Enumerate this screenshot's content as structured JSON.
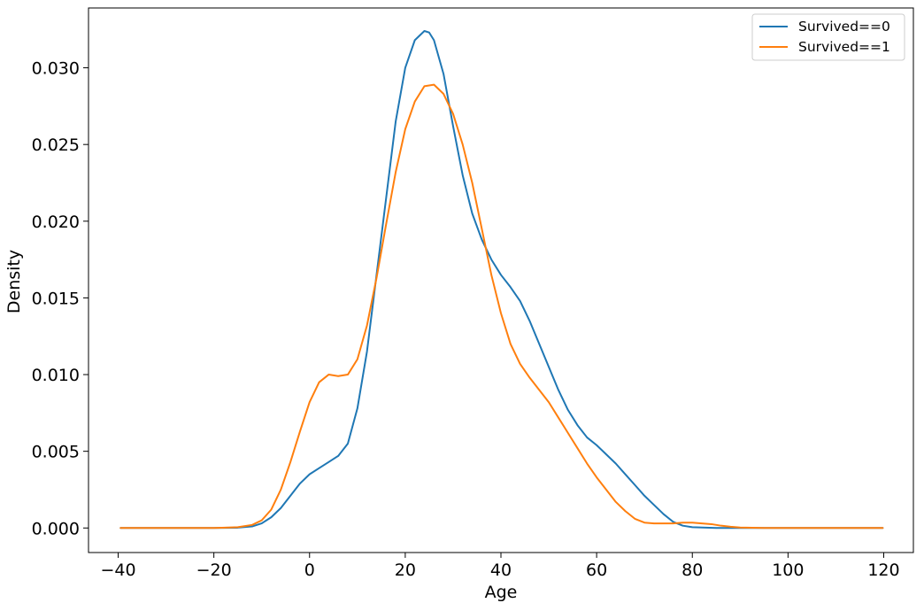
{
  "chart_data": {
    "type": "line",
    "title": "",
    "xlabel": "Age",
    "ylabel": "Density",
    "xlim": [
      -46.2,
      126.2
    ],
    "ylim": [
      -0.0016,
      0.0339
    ],
    "xticks": [
      -40,
      -20,
      0,
      20,
      40,
      60,
      80,
      100,
      120
    ],
    "xtick_labels": [
      "−40",
      "−20",
      "0",
      "20",
      "40",
      "60",
      "80",
      "100",
      "120"
    ],
    "yticks": [
      0.0,
      0.005,
      0.01,
      0.015,
      0.02,
      0.025,
      0.03
    ],
    "ytick_labels": [
      "0.000",
      "0.005",
      "0.010",
      "0.015",
      "0.020",
      "0.025",
      "0.030"
    ],
    "grid": false,
    "legend_position": "top-right",
    "series": [
      {
        "name": "Survived==0",
        "color": "#1f77b4",
        "x": [
          -39.5,
          -30,
          -20,
          -15,
          -12,
          -10,
          -8,
          -6,
          -4,
          -2,
          0,
          2,
          4,
          6,
          8,
          10,
          12,
          14,
          16,
          18,
          20,
          22,
          24,
          25,
          26,
          28,
          30,
          32,
          34,
          36,
          38,
          40,
          42,
          44,
          46,
          48,
          50,
          52,
          54,
          56,
          58,
          60,
          62,
          64,
          66,
          68,
          70,
          72,
          74,
          76,
          78,
          80,
          85,
          90,
          100,
          110,
          119.8
        ],
        "y": [
          0,
          0,
          0,
          2e-05,
          0.0001,
          0.0003,
          0.0007,
          0.0013,
          0.0021,
          0.0029,
          0.0035,
          0.0039,
          0.0043,
          0.0047,
          0.0055,
          0.0078,
          0.0115,
          0.0165,
          0.0215,
          0.0265,
          0.03,
          0.0318,
          0.0324,
          0.0323,
          0.0318,
          0.0296,
          0.0262,
          0.023,
          0.0205,
          0.0188,
          0.0175,
          0.0165,
          0.0157,
          0.0148,
          0.0135,
          0.012,
          0.0105,
          0.009,
          0.0077,
          0.0067,
          0.0059,
          0.0054,
          0.0048,
          0.0042,
          0.0035,
          0.0028,
          0.0021,
          0.0015,
          0.0009,
          0.0004,
          0.00015,
          5e-05,
          0,
          0,
          0,
          0,
          0
        ]
      },
      {
        "name": "Survived==1",
        "color": "#ff7f0e",
        "x": [
          -39.5,
          -30,
          -20,
          -15,
          -12,
          -10,
          -8,
          -6,
          -4,
          -2,
          0,
          2,
          4,
          6,
          8,
          10,
          12,
          14,
          16,
          18,
          20,
          22,
          24,
          26,
          28,
          30,
          32,
          34,
          36,
          38,
          40,
          42,
          44,
          46,
          48,
          50,
          52,
          54,
          56,
          58,
          60,
          62,
          64,
          66,
          68,
          70,
          72,
          74,
          76,
          78,
          80,
          82,
          84,
          86,
          88,
          90,
          95,
          100,
          110,
          119.8
        ],
        "y": [
          0,
          0,
          0,
          5e-05,
          0.0002,
          0.0005,
          0.0012,
          0.0025,
          0.0043,
          0.0063,
          0.0082,
          0.0095,
          0.01,
          0.0099,
          0.01,
          0.011,
          0.0132,
          0.0163,
          0.0198,
          0.0232,
          0.026,
          0.0278,
          0.0288,
          0.0289,
          0.0283,
          0.027,
          0.025,
          0.0225,
          0.0195,
          0.0165,
          0.014,
          0.012,
          0.0107,
          0.0098,
          0.009,
          0.0082,
          0.0072,
          0.0062,
          0.0052,
          0.0042,
          0.0033,
          0.0025,
          0.0017,
          0.0011,
          0.0006,
          0.00035,
          0.0003,
          0.0003,
          0.0003,
          0.00035,
          0.00035,
          0.0003,
          0.00025,
          0.00015,
          8e-05,
          3e-05,
          0,
          0,
          0,
          0
        ]
      }
    ]
  }
}
